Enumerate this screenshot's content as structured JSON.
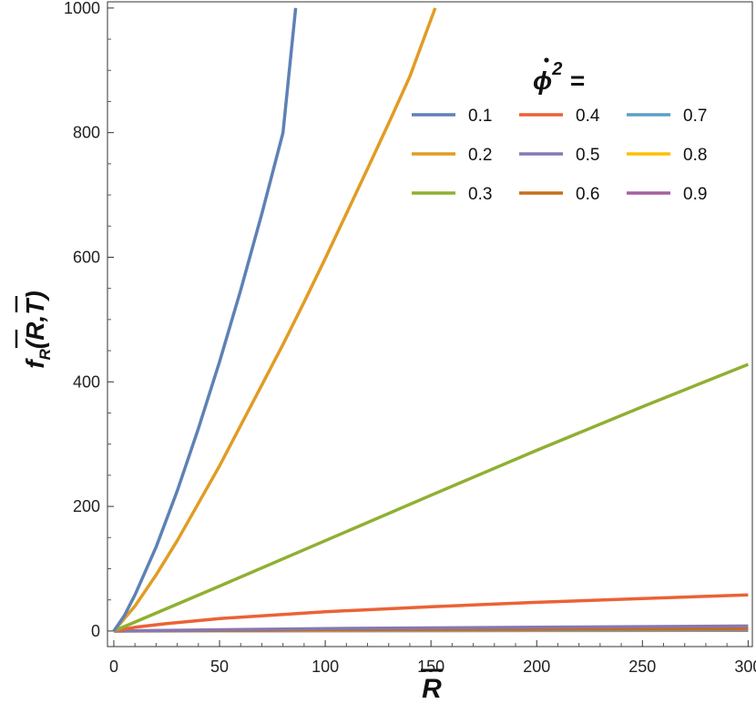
{
  "chart_data": {
    "type": "line",
    "xlabel": "R",
    "ylabel": "f_R(R,T)",
    "ylabel_parts": {
      "main": "f",
      "sub": "R",
      "args": "(R,T)"
    },
    "xlim": [
      -3,
      302
    ],
    "ylim": [
      -25,
      1010
    ],
    "xticks": [
      0,
      50,
      100,
      150,
      200,
      250,
      300
    ],
    "yticks": [
      0,
      200,
      400,
      600,
      800,
      1000
    ],
    "legend_title": {
      "symbol": "ϕ",
      "superscript": "2",
      "suffix": "="
    },
    "legend_position": "top-right",
    "series": [
      {
        "name": "0.1",
        "color": "#5E81B5",
        "x": [
          0,
          5,
          10,
          20,
          30,
          40,
          50,
          60,
          70,
          80,
          86
        ],
        "y": [
          0,
          25,
          58,
          135,
          225,
          325,
          432,
          547,
          670,
          800,
          1000
        ]
      },
      {
        "name": "0.2",
        "color": "#E19C24",
        "x": [
          0,
          10,
          20,
          30,
          40,
          50,
          60,
          70,
          80,
          90,
          100,
          110,
          120,
          130,
          140,
          152
        ],
        "y": [
          0,
          40,
          90,
          145,
          205,
          265,
          330,
          395,
          460,
          528,
          598,
          670,
          742,
          815,
          890,
          1000
        ]
      },
      {
        "name": "0.3",
        "color": "#8FB032",
        "x": [
          0,
          50,
          100,
          150,
          200,
          250,
          300
        ],
        "y": [
          0,
          72,
          145,
          218,
          290,
          360,
          428
        ]
      },
      {
        "name": "0.4",
        "color": "#EB6235",
        "x": [
          0,
          10,
          25,
          50,
          100,
          150,
          200,
          250,
          300
        ],
        "y": [
          0,
          6,
          12,
          20,
          31,
          39,
          46,
          52,
          58
        ]
      },
      {
        "name": "0.5",
        "color": "#8778B3",
        "x": [
          0,
          100,
          200,
          300
        ],
        "y": [
          0,
          4,
          6,
          8
        ]
      },
      {
        "name": "0.6",
        "color": "#C56E1A",
        "x": [
          0,
          100,
          200,
          300
        ],
        "y": [
          0,
          2,
          3,
          4
        ]
      },
      {
        "name": "0.7",
        "color": "#5D9EC7",
        "x": [
          0,
          100,
          200,
          300
        ],
        "y": [
          0,
          1.5,
          2,
          2.5
        ]
      },
      {
        "name": "0.8",
        "color": "#FFBF00",
        "x": [
          0,
          100,
          200,
          300
        ],
        "y": [
          0,
          1,
          1.5,
          2
        ]
      },
      {
        "name": "0.9",
        "color": "#A5609D",
        "x": [
          0,
          100,
          200,
          300
        ],
        "y": [
          0,
          0.5,
          0.8,
          1
        ]
      }
    ]
  }
}
